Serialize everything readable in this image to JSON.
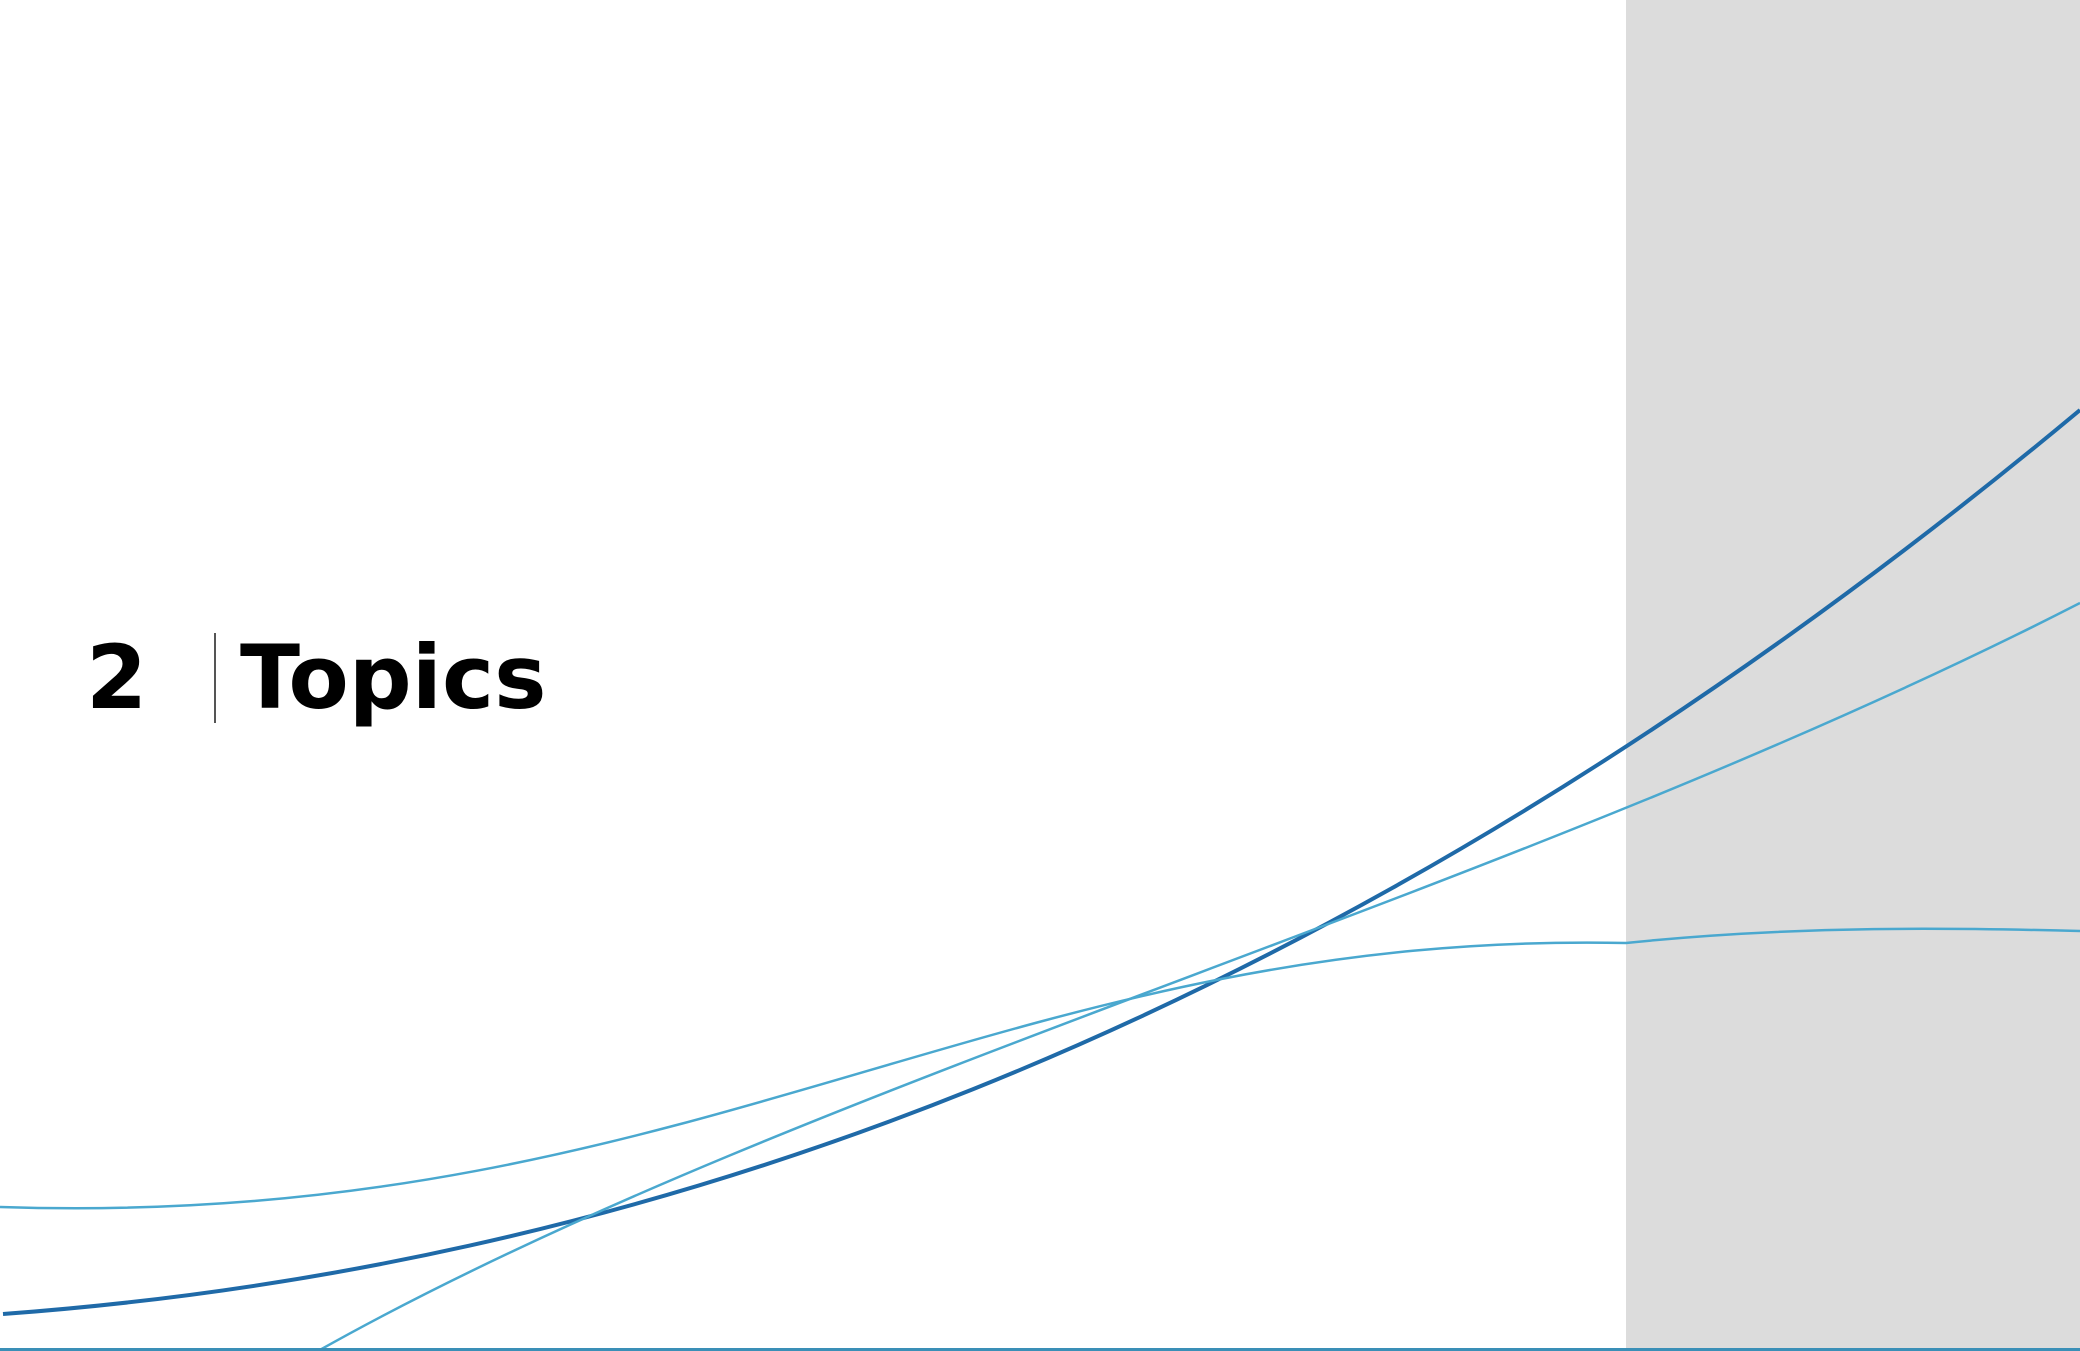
{
  "section": {
    "number": "2",
    "title": "Topics"
  },
  "colors": {
    "background": "#ffffff",
    "side_panel": "#dcdcdc",
    "curve_dark": "#1f6aa8",
    "curve_light": "#4aa8cf",
    "text": "#000000"
  }
}
